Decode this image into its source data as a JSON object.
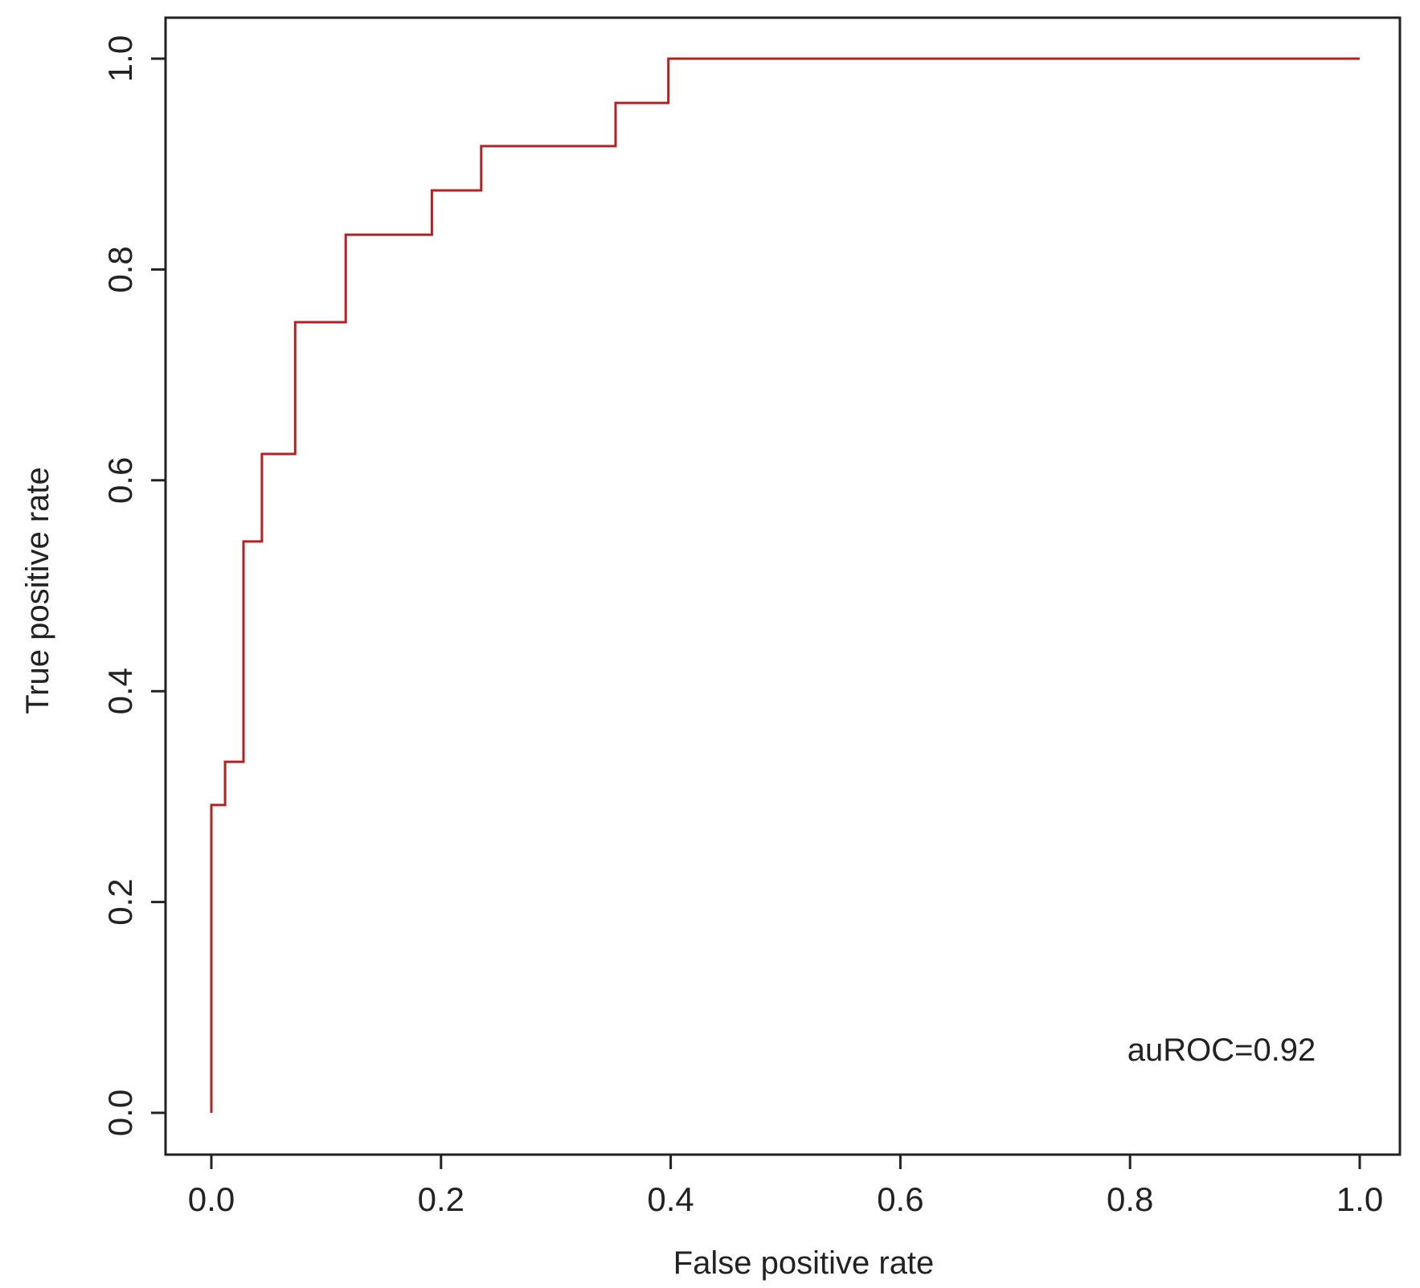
{
  "chart_data": {
    "type": "line",
    "title": "",
    "xlabel": "False positive rate",
    "ylabel": "True positive rate",
    "xlim": [
      0,
      1
    ],
    "ylim": [
      0,
      1
    ],
    "x_ticks": [
      "0.0",
      "0.2",
      "0.4",
      "0.6",
      "0.8",
      "1.0"
    ],
    "y_ticks": [
      "0.0",
      "0.2",
      "0.4",
      "0.6",
      "0.8",
      "1.0"
    ],
    "grid": false,
    "legend": "none",
    "annotation": "auROC=0.92",
    "series": [
      {
        "color": "#b22222",
        "x": [
          0.0,
          0.0,
          0.012,
          0.012,
          0.028,
          0.028,
          0.044,
          0.044,
          0.073,
          0.073,
          0.117,
          0.117,
          0.192,
          0.192,
          0.235,
          0.235,
          0.352,
          0.352,
          0.398,
          0.398,
          1.0
        ],
        "y": [
          0.0,
          0.292,
          0.292,
          0.333,
          0.333,
          0.542,
          0.542,
          0.625,
          0.625,
          0.75,
          0.75,
          0.833,
          0.833,
          0.875,
          0.875,
          0.917,
          0.917,
          0.958,
          0.958,
          1.0,
          1.0
        ]
      }
    ]
  }
}
